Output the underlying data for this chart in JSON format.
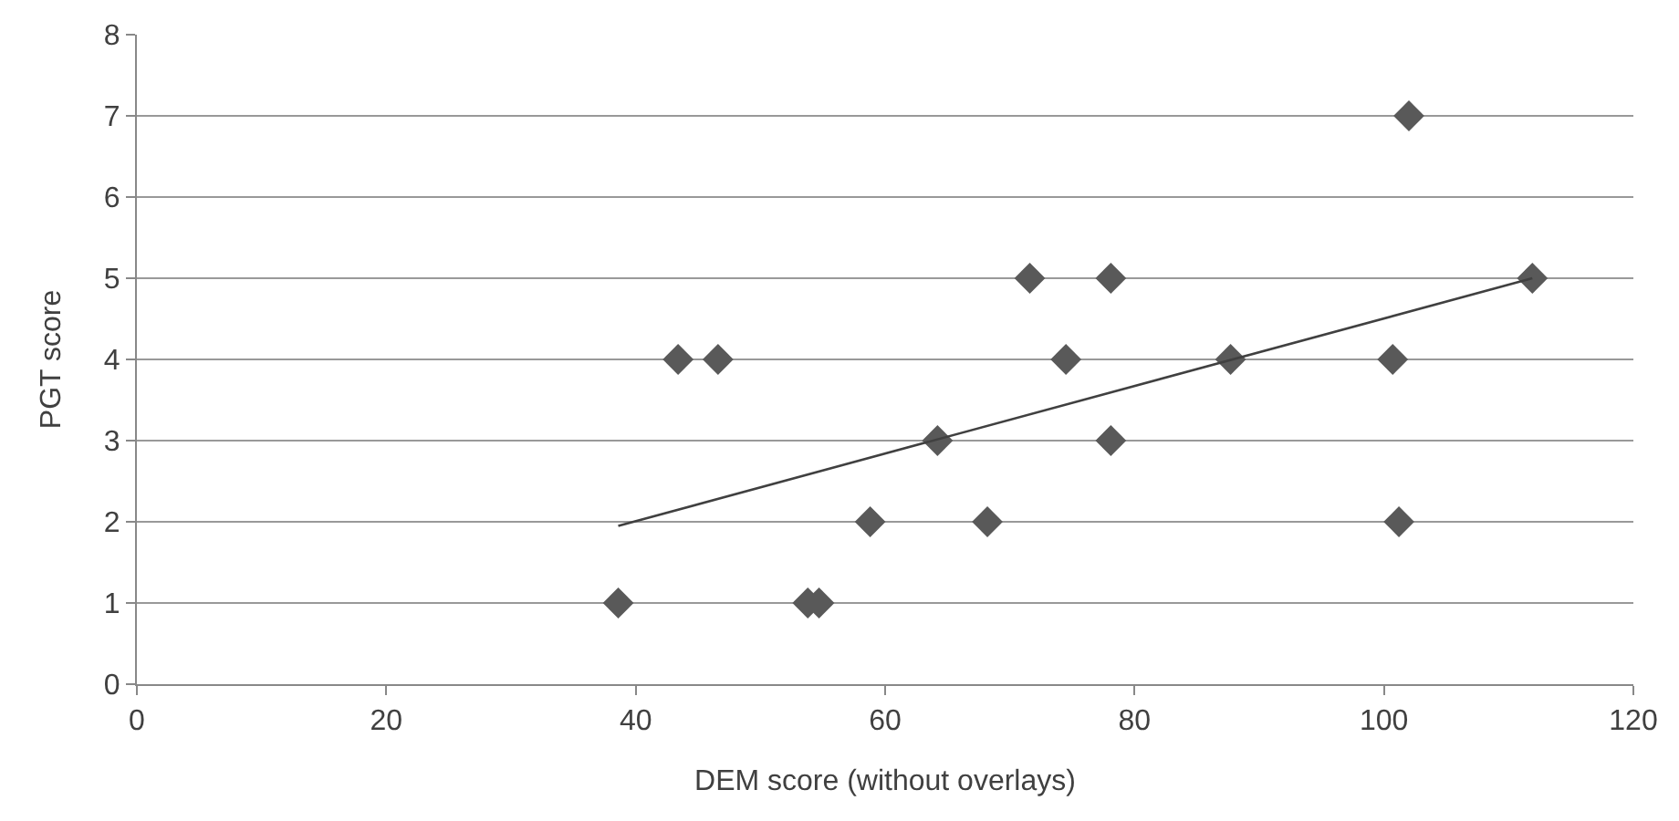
{
  "chart_data": {
    "type": "scatter",
    "xlabel": "DEM score (without overlays)",
    "ylabel": "PGT score",
    "xlim": [
      0,
      120
    ],
    "xticks": [
      0,
      20,
      40,
      60,
      80,
      100,
      120
    ],
    "ylim": [
      0,
      8
    ],
    "yticks": [
      0,
      1,
      2,
      3,
      4,
      5,
      6,
      7,
      8
    ],
    "grid": "y",
    "series": [
      {
        "color": "#595959",
        "marker": "diamond",
        "x": [
          38.6,
          43.4,
          46.6,
          53.8,
          54.7,
          58.8,
          64.2,
          68.2,
          71.6,
          74.5,
          78.1,
          78.1,
          87.7,
          100.7,
          101.2,
          102.0,
          111.9
        ],
        "values": [
          1,
          4,
          4,
          1,
          1,
          2,
          3,
          2,
          5,
          4,
          5,
          3,
          4,
          4,
          2,
          7,
          5
        ]
      },
      {
        "type": "line",
        "color": "#404040",
        "marker": "none",
        "line_style": "solid",
        "x": [
          38.6,
          111.9
        ],
        "values": [
          1.95,
          5.0
        ]
      }
    ]
  }
}
